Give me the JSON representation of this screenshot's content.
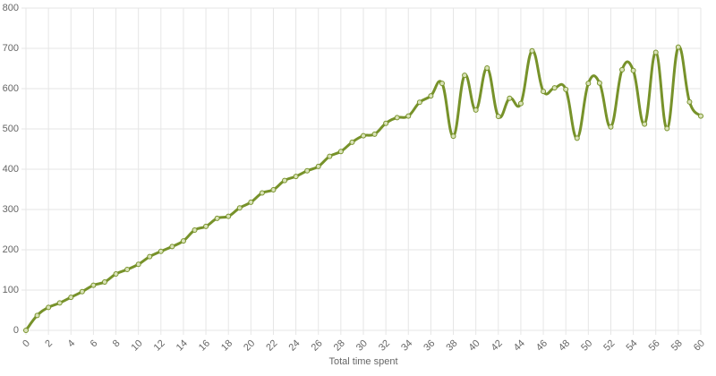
{
  "chart_data": {
    "type": "line",
    "x_label": "Total time spent",
    "x": [
      0,
      1,
      2,
      3,
      4,
      5,
      6,
      7,
      8,
      9,
      10,
      11,
      12,
      13,
      14,
      15,
      16,
      17,
      18,
      19,
      20,
      21,
      22,
      23,
      24,
      25,
      26,
      27,
      28,
      29,
      30,
      31,
      32,
      33,
      34,
      35,
      36,
      37,
      38,
      39,
      40,
      41,
      42,
      43,
      44,
      45,
      46,
      47,
      48,
      49,
      50,
      51,
      52,
      53,
      54,
      55,
      56,
      57,
      58,
      59,
      60
    ],
    "series": [
      {
        "color": "#77922a",
        "values": [
          0,
          37,
          57,
          68,
          82,
          96,
          112,
          120,
          140,
          151,
          164,
          183,
          196,
          208,
          222,
          249,
          258,
          278,
          283,
          304,
          318,
          341,
          349,
          372,
          382,
          396,
          407,
          432,
          444,
          467,
          483,
          487,
          514,
          528,
          532,
          566,
          582,
          613,
          482,
          633,
          547,
          651,
          531,
          576,
          563,
          694,
          593,
          602,
          598,
          477,
          613,
          614,
          505,
          647,
          645,
          512,
          690,
          501,
          703,
          567,
          532
        ]
      }
    ],
    "xlim": [
      0,
      60
    ],
    "xticks": [
      0,
      2,
      4,
      6,
      8,
      10,
      12,
      14,
      16,
      18,
      20,
      22,
      24,
      26,
      28,
      30,
      32,
      34,
      36,
      38,
      40,
      42,
      44,
      46,
      48,
      50,
      52,
      54,
      56,
      58,
      60
    ],
    "ylim": [
      0,
      800
    ],
    "yticks": [
      0,
      100,
      200,
      300,
      400,
      500,
      600,
      700,
      800
    ],
    "grid": true
  }
}
